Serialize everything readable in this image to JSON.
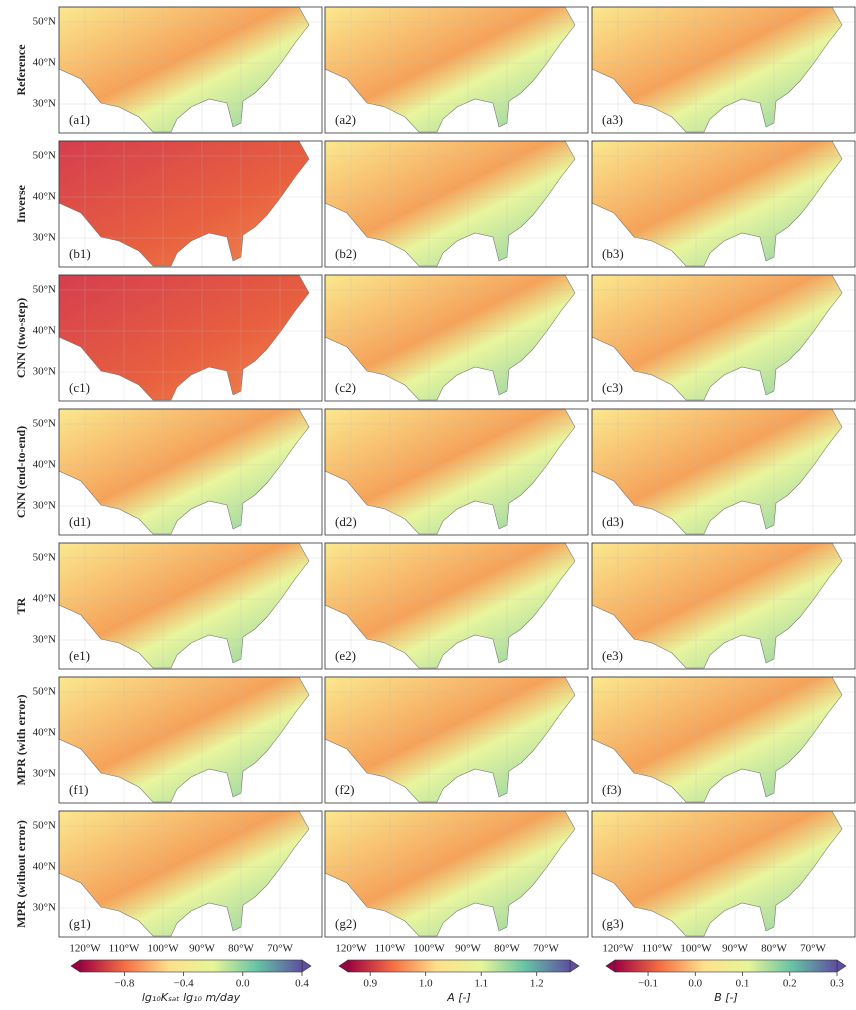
{
  "rows": [
    {
      "label": "Reference",
      "panels": [
        "(a1)",
        "(a2)",
        "(a3)"
      ]
    },
    {
      "label": "Inverse",
      "panels": [
        "(b1)",
        "(b2)",
        "(b3)"
      ]
    },
    {
      "label": "CNN (two-step)",
      "panels": [
        "(c1)",
        "(c2)",
        "(c3)"
      ]
    },
    {
      "label": "CNN (end-to-end)",
      "panels": [
        "(d1)",
        "(d2)",
        "(d3)"
      ]
    },
    {
      "label": "TR",
      "panels": [
        "(e1)",
        "(e2)",
        "(e3)"
      ]
    },
    {
      "label": "MPR (with error)",
      "panels": [
        "(f1)",
        "(f2)",
        "(f3)"
      ]
    },
    {
      "label": "MPR (without error)",
      "panels": [
        "(g1)",
        "(g2)",
        "(g3)"
      ]
    }
  ],
  "lat_ticks": [
    {
      "value": 50,
      "label": "50°N"
    },
    {
      "value": 40,
      "label": "40°N"
    },
    {
      "value": 30,
      "label": "30°N"
    }
  ],
  "lon_ticks": [
    {
      "value": -120,
      "label": "120°W"
    },
    {
      "value": -110,
      "label": "110°W"
    },
    {
      "value": -100,
      "label": "100°W"
    },
    {
      "value": -90,
      "label": "90°W"
    },
    {
      "value": -80,
      "label": "80°W"
    },
    {
      "value": -70,
      "label": "70°W"
    }
  ],
  "colorbars": [
    {
      "label": "lg₁₀Kₛₐₜ lg₁₀ m/day",
      "lim": [
        -1.1,
        0.4
      ],
      "ticks": [
        {
          "value": -0.8,
          "label": "−0.8"
        },
        {
          "value": -0.4,
          "label": "−0.4"
        },
        {
          "value": 0,
          "label": "0.0"
        },
        0.4
      ],
      "colors": [
        "#9e0142",
        "#f46d43",
        "#fee08b",
        "#e6f598",
        "#66c2a5",
        "#5e4fa2"
      ]
    },
    {
      "label": "A [-]",
      "lim": [
        0.86,
        1.26
      ],
      "ticks": [
        0.9,
        {
          "value": 1,
          "label": "1.0"
        },
        1.1,
        1.2
      ],
      "colors": [
        "#9e0142",
        "#f46d43",
        "#fee08b",
        "#e6f598",
        "#66c2a5",
        "#5e4fa2"
      ]
    },
    {
      "label": "B [-]",
      "lim": [
        -0.17,
        0.3
      ],
      "ticks": [
        {
          "value": -0.1,
          "label": "−0.1"
        },
        {
          "value": 0,
          "label": "0.0"
        },
        0.1,
        0.2,
        0.3
      ],
      "colors": [
        "#9e0142",
        "#f46d43",
        "#fee08b",
        "#e6f598",
        "#66c2a5",
        "#5e4fa2"
      ]
    }
  ]
}
